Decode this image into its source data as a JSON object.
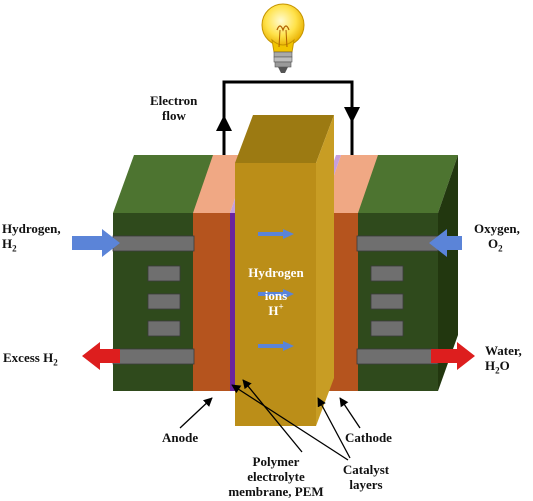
{
  "labels": {
    "electron_flow": [
      "Electron",
      "flow"
    ],
    "hydrogen_in": {
      "line1": "Hydrogen,",
      "sym": "H",
      "sub": "2"
    },
    "oxygen_in": {
      "line1": "Oxygen,",
      "sym": "O",
      "sub": "2"
    },
    "excess": {
      "text": "Excess H",
      "sub": "2"
    },
    "water": {
      "line1": "Water,",
      "pre": "H",
      "sub": "2",
      "post": "O"
    },
    "ions": {
      "line1": "Hydrogen",
      "line2": "ions",
      "sym": "H",
      "sup": "+"
    },
    "anode": "Anode",
    "cathode": "Cathode",
    "pem": [
      "Polymer",
      "electrolyte",
      "membrane, PEM"
    ],
    "catalyst": [
      "Catalyst",
      "layers"
    ]
  },
  "colors": {
    "housing_face": "#2f4a1c",
    "housing_top": "#4d7430",
    "housing_side": "#22370f",
    "electrode_face": "#b5541e",
    "electrode_top": "#f0a884",
    "membrane_face": "#bb8e18",
    "membrane_top": "#9c7a12",
    "membrane_side": "#c89d24",
    "catalyst": "#6a24a0",
    "catalyst_top": "#c7a0dc",
    "bar": "#6f6f6f",
    "arrow_blue": "#5b84d8",
    "arrow_red": "#dd1e1e",
    "wire": "#000000"
  },
  "icons": {
    "bulb": "light-bulb-icon"
  }
}
